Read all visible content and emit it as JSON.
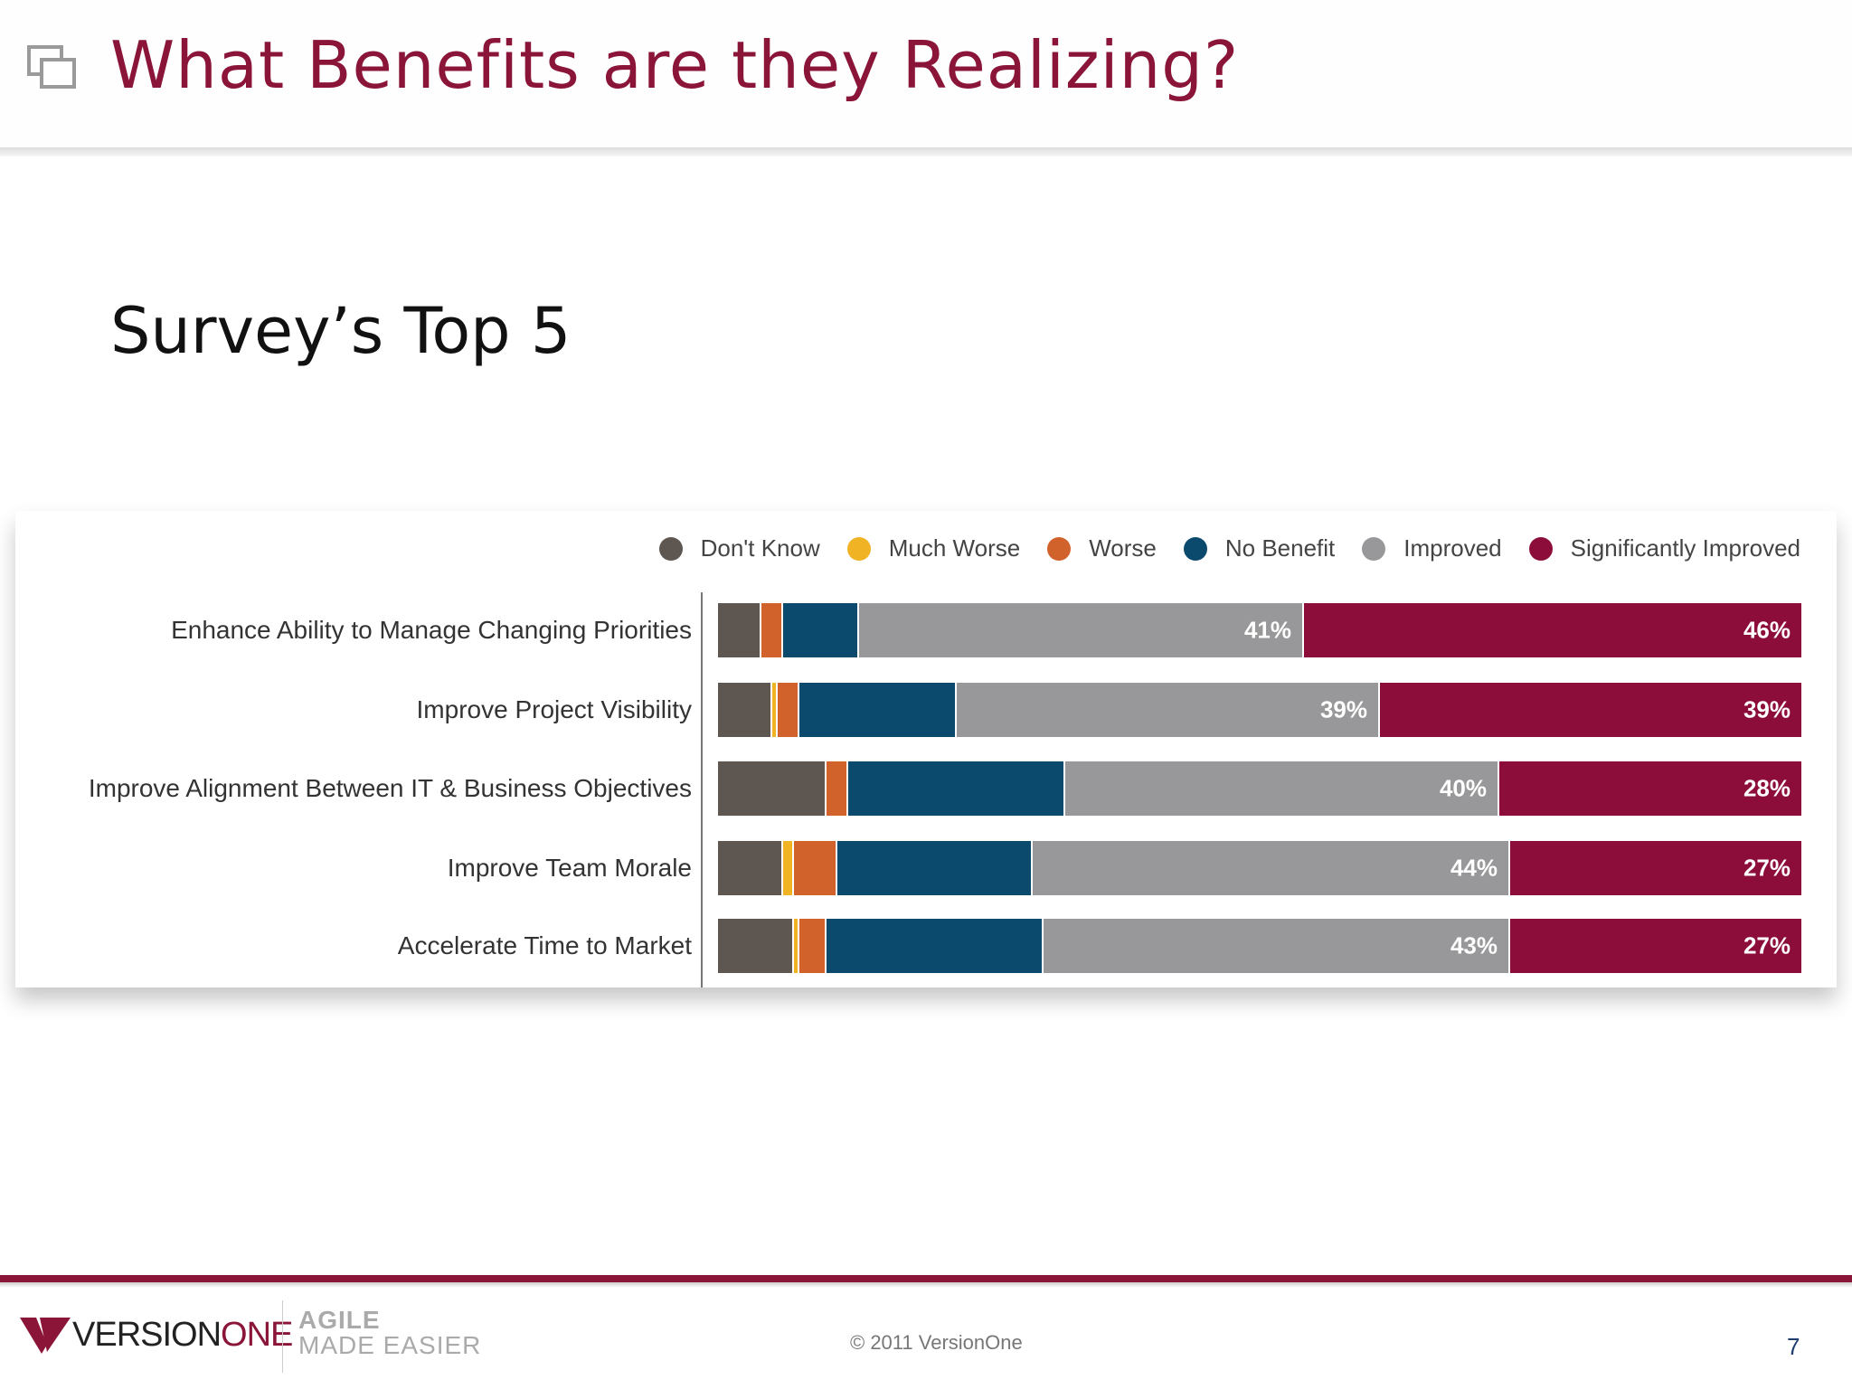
{
  "slide": {
    "title": "What Benefits are they Realizing?",
    "subtitle": "Survey’s Top 5",
    "icon": "slides-icon"
  },
  "chart_data": {
    "type": "bar",
    "orientation": "horizontal",
    "stacked": true,
    "legend_position": "top-right",
    "categories": [
      "Enhance Ability to Manage Changing Priorities",
      "Improve Project Visibility",
      "Improve Alignment Between IT & Business Objectives",
      "Improve Team Morale",
      "Accelerate Time to Market"
    ],
    "series": [
      {
        "name": "Don't Know",
        "color": "#5e5650",
        "values": [
          4,
          5,
          10,
          6,
          7
        ]
      },
      {
        "name": "Much Worse",
        "color": "#f0b323",
        "values": [
          0,
          0.5,
          0,
          1,
          0.5
        ]
      },
      {
        "name": "Worse",
        "color": "#d2622b",
        "values": [
          2,
          2,
          2,
          4,
          2.5
        ]
      },
      {
        "name": "No Benefit",
        "color": "#0b4a6d",
        "values": [
          7,
          14.5,
          20,
          18,
          20
        ]
      },
      {
        "name": "Improved",
        "color": "#98989a",
        "values": [
          41,
          39,
          40,
          44,
          43
        ]
      },
      {
        "name": "Significantly Improved",
        "color": "#8c0d3a",
        "values": [
          46,
          39,
          28,
          27,
          27
        ]
      }
    ],
    "value_labels": [
      [
        "41%",
        "46%"
      ],
      [
        "39%",
        "39%"
      ],
      [
        "40%",
        "28%"
      ],
      [
        "44%",
        "27%"
      ],
      [
        "43%",
        "27%"
      ]
    ],
    "xlim": [
      0,
      100
    ]
  },
  "footer": {
    "logo_version": "VERSION",
    "logo_one": "ONE",
    "tagline_line1": "AGILE",
    "tagline_line2": "MADE EASIER",
    "copyright": "© 2011 VersionOne",
    "page_number": "7"
  },
  "colors": {
    "accent": "#8a1538",
    "page_number": "#1f3d6e"
  }
}
